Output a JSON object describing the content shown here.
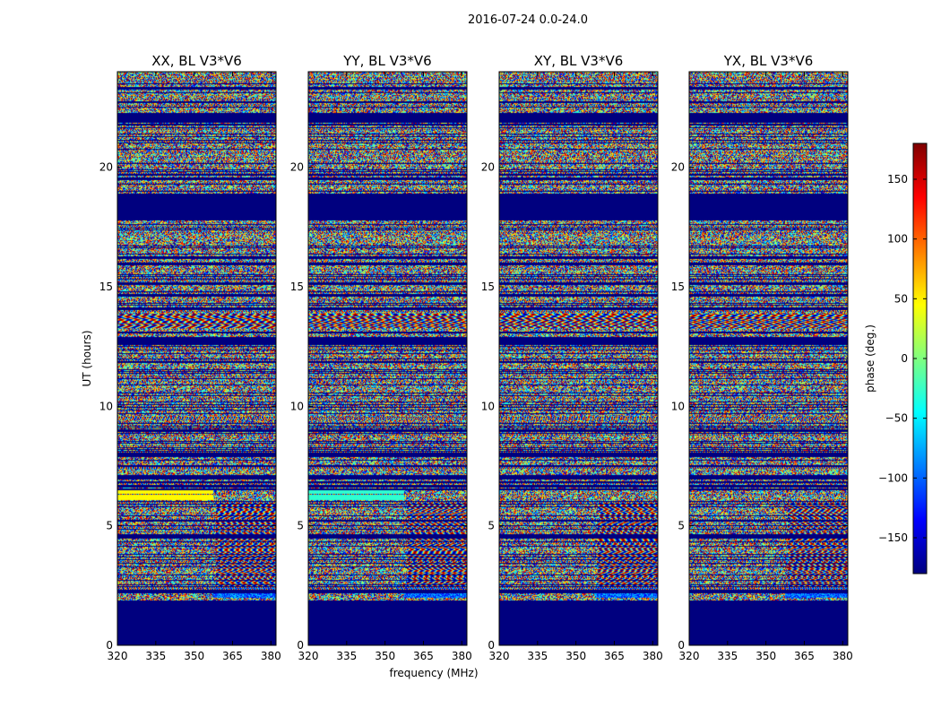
{
  "figure": {
    "suptitle": "2016-07-24 0.0-24.0"
  },
  "chart_data": {
    "type": "heatmap",
    "colormap": "jet",
    "x_unit_label": "frequency (MHz)",
    "y_unit_label": "UT (hours)",
    "xlim": [
      320,
      382
    ],
    "ylim": [
      0,
      24
    ],
    "xticks": [
      320,
      335,
      350,
      365,
      380
    ],
    "yticks": [
      0,
      5,
      10,
      15,
      20
    ],
    "colorbar": {
      "label": "phase (deg.)",
      "range": [
        -180,
        180
      ],
      "ticks": [
        -150,
        -100,
        -50,
        0,
        50,
        100,
        150
      ],
      "tick_labels": [
        "−150",
        "−100",
        "−50",
        "0",
        "50",
        "100",
        "150"
      ],
      "colors": [
        "#00007f",
        "#0000ff",
        "#007fff",
        "#00ffff",
        "#7fff7f",
        "#ffff00",
        "#ff7f00",
        "#ff0000",
        "#7f0000"
      ]
    },
    "panels": [
      {
        "title": "XX, BL V3*V6"
      },
      {
        "title": "YY, BL V3*V6"
      },
      {
        "title": "XY, BL V3*V6"
      },
      {
        "title": "YX, BL V3*V6"
      }
    ],
    "no_data_intervals_hours": [
      [
        0.0,
        1.85
      ],
      [
        18.85,
        17.75
      ]
    ],
    "fringe_band_hours": [
      13.3,
      13.9
    ]
  }
}
